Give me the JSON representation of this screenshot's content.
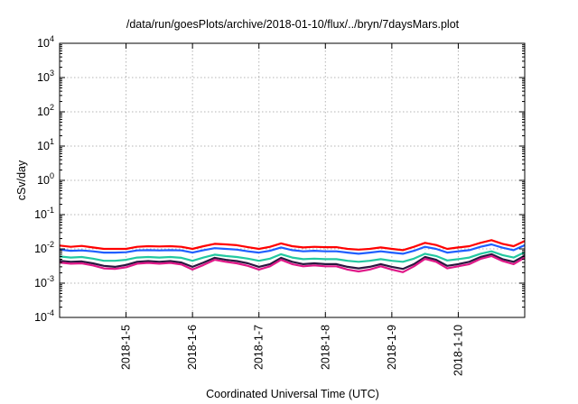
{
  "chart_data": {
    "type": "line",
    "title": "/data/run/goesPlots/archive/2018-01-10/flux/../bryn/7daysMars.plot",
    "xlabel": "Coordinated Universal Time (UTC)",
    "ylabel": "cSv/day",
    "yscale": "log",
    "ylim": [
      0.0001,
      10000
    ],
    "xlim": [
      "2018-01-04 00:00",
      "2018-01-11 00:00"
    ],
    "grid": true,
    "legend": "none",
    "x_ticks": [
      "2018-1-5",
      "2018-1-6",
      "2018-1-7",
      "2018-1-8",
      "2018-1-9",
      "2018-1-10"
    ],
    "y_ticks": [
      {
        "base": "10",
        "exp": "-4",
        "value": 0.0001
      },
      {
        "base": "10",
        "exp": "-3",
        "value": 0.001
      },
      {
        "base": "10",
        "exp": "-2",
        "value": 0.01
      },
      {
        "base": "10",
        "exp": "-1",
        "value": 0.1
      },
      {
        "base": "10",
        "exp": "0",
        "value": 1
      },
      {
        "base": "10",
        "exp": "1",
        "value": 10
      },
      {
        "base": "10",
        "exp": "2",
        "value": 100
      },
      {
        "base": "10",
        "exp": "3",
        "value": 1000
      },
      {
        "base": "10",
        "exp": "4",
        "value": 10000
      }
    ],
    "x": [
      "2018-01-04 00:00",
      "2018-01-04 04:00",
      "2018-01-04 08:00",
      "2018-01-04 12:00",
      "2018-01-04 16:00",
      "2018-01-04 20:00",
      "2018-01-05 00:00",
      "2018-01-05 04:00",
      "2018-01-05 08:00",
      "2018-01-05 12:00",
      "2018-01-05 16:00",
      "2018-01-05 20:00",
      "2018-01-06 00:00",
      "2018-01-06 04:00",
      "2018-01-06 08:00",
      "2018-01-06 12:00",
      "2018-01-06 16:00",
      "2018-01-06 20:00",
      "2018-01-07 00:00",
      "2018-01-07 04:00",
      "2018-01-07 08:00",
      "2018-01-07 12:00",
      "2018-01-07 16:00",
      "2018-01-07 20:00",
      "2018-01-08 00:00",
      "2018-01-08 04:00",
      "2018-01-08 08:00",
      "2018-01-08 12:00",
      "2018-01-08 16:00",
      "2018-01-08 20:00",
      "2018-01-09 00:00",
      "2018-01-09 04:00",
      "2018-01-09 08:00",
      "2018-01-09 12:00",
      "2018-01-09 16:00",
      "2018-01-09 20:00",
      "2018-01-10 00:00",
      "2018-01-10 04:00",
      "2018-01-10 08:00",
      "2018-01-10 12:00",
      "2018-01-10 16:00",
      "2018-01-10 20:00",
      "2018-01-11 00:00"
    ],
    "series": [
      {
        "color": "#ff0000",
        "values": [
          0.0125,
          0.0115,
          0.0122,
          0.011,
          0.01,
          0.01,
          0.01,
          0.0115,
          0.012,
          0.0118,
          0.012,
          0.0115,
          0.01,
          0.012,
          0.014,
          0.0135,
          0.0128,
          0.0112,
          0.01,
          0.0115,
          0.0145,
          0.012,
          0.011,
          0.0115,
          0.0112,
          0.0112,
          0.01,
          0.0095,
          0.01,
          0.011,
          0.01,
          0.0092,
          0.0115,
          0.015,
          0.013,
          0.01,
          0.011,
          0.012,
          0.015,
          0.018,
          0.014,
          0.012,
          0.017
        ]
      },
      {
        "color": "#1f5fff",
        "values": [
          0.0095,
          0.0088,
          0.009,
          0.0085,
          0.0078,
          0.0078,
          0.008,
          0.009,
          0.0092,
          0.009,
          0.0092,
          0.009,
          0.0078,
          0.0092,
          0.0105,
          0.01,
          0.0095,
          0.0085,
          0.0078,
          0.0088,
          0.011,
          0.0092,
          0.0085,
          0.0088,
          0.0085,
          0.0085,
          0.0078,
          0.0072,
          0.0078,
          0.0085,
          0.0078,
          0.0072,
          0.0088,
          0.0115,
          0.01,
          0.0078,
          0.0085,
          0.0092,
          0.0115,
          0.0135,
          0.0108,
          0.0092,
          0.0128
        ]
      },
      {
        "color": "#22c8a0",
        "values": [
          0.006,
          0.0056,
          0.0058,
          0.0052,
          0.0045,
          0.0045,
          0.0048,
          0.0056,
          0.0058,
          0.0056,
          0.0058,
          0.0055,
          0.0045,
          0.0056,
          0.0068,
          0.0062,
          0.0058,
          0.0052,
          0.0045,
          0.0052,
          0.007,
          0.0056,
          0.005,
          0.0052,
          0.005,
          0.005,
          0.0045,
          0.0042,
          0.0045,
          0.005,
          0.0045,
          0.0042,
          0.0052,
          0.0072,
          0.0062,
          0.0046,
          0.005,
          0.0056,
          0.0072,
          0.0085,
          0.0066,
          0.0056,
          0.008
        ]
      },
      {
        "color": "#2a1840",
        "values": [
          0.0045,
          0.0042,
          0.0043,
          0.0038,
          0.0032,
          0.003,
          0.0034,
          0.0042,
          0.0044,
          0.0042,
          0.0044,
          0.004,
          0.003,
          0.004,
          0.0055,
          0.0048,
          0.0044,
          0.0038,
          0.003,
          0.0036,
          0.0055,
          0.0042,
          0.0036,
          0.0038,
          0.0036,
          0.0036,
          0.003,
          0.0027,
          0.003,
          0.0036,
          0.003,
          0.0026,
          0.0036,
          0.0058,
          0.0048,
          0.0032,
          0.0036,
          0.0042,
          0.0058,
          0.007,
          0.005,
          0.0042,
          0.0064
        ]
      },
      {
        "color": "#e01888",
        "values": [
          0.004,
          0.0037,
          0.0038,
          0.0033,
          0.0027,
          0.0026,
          0.0029,
          0.0037,
          0.0039,
          0.0037,
          0.0039,
          0.0035,
          0.0025,
          0.0034,
          0.0048,
          0.0042,
          0.0038,
          0.0032,
          0.0025,
          0.0031,
          0.0048,
          0.0036,
          0.0031,
          0.0033,
          0.0031,
          0.0031,
          0.0025,
          0.0022,
          0.0025,
          0.0031,
          0.0025,
          0.0021,
          0.0031,
          0.0051,
          0.0042,
          0.0027,
          0.0031,
          0.0036,
          0.0051,
          0.0062,
          0.0044,
          0.0036,
          0.0056
        ]
      }
    ]
  }
}
